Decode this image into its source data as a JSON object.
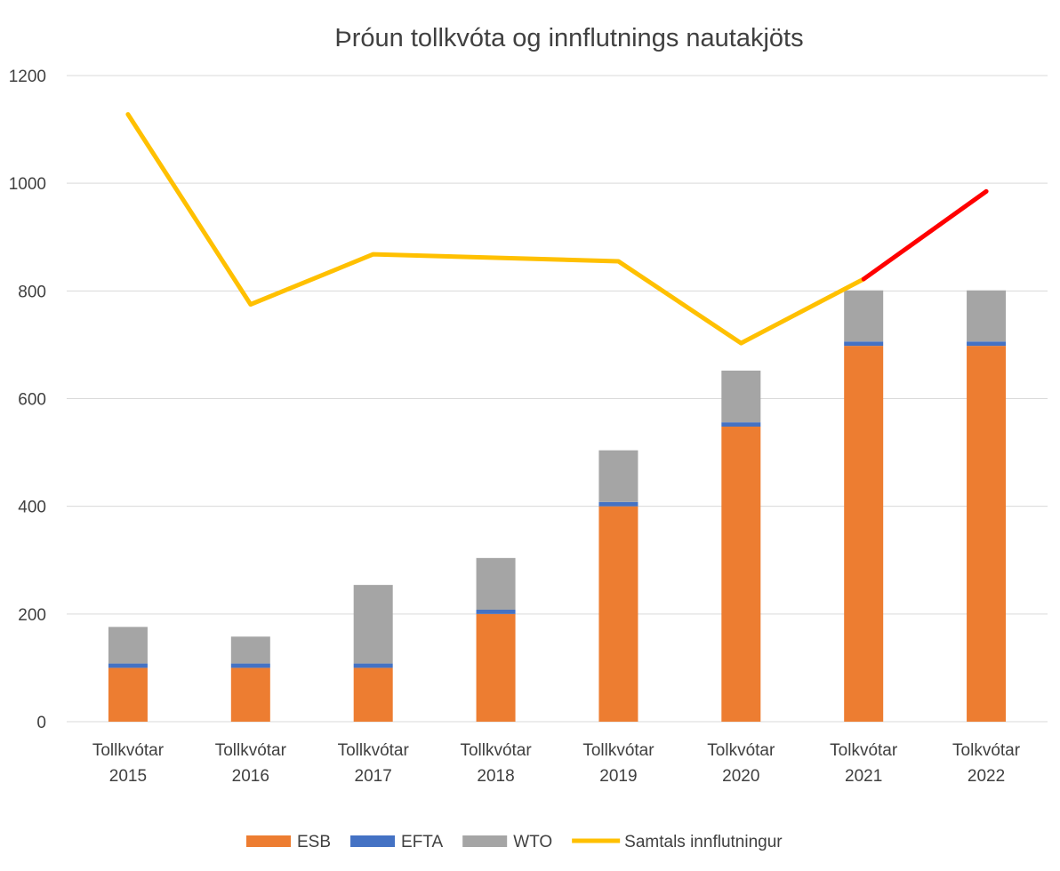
{
  "chart_data": {
    "type": "bar",
    "stacked": true,
    "title": "Þróun tollkvóta og innflutnings nautakjöts",
    "xlabel": "",
    "ylabel": "",
    "ylim": [
      0,
      1200
    ],
    "yticks": [
      0,
      200,
      400,
      600,
      800,
      1000,
      1200
    ],
    "grid": true,
    "legend_position": "bottom",
    "categories": [
      [
        "Tollkvótar",
        "2015"
      ],
      [
        "Tollkvótar",
        "2016"
      ],
      [
        "Tollkvótar",
        "2017"
      ],
      [
        "Tollkvótar",
        "2018"
      ],
      [
        "Tollkvótar",
        "2019"
      ],
      [
        "Tolkvótar",
        "2020"
      ],
      [
        "Tolkvótar",
        "2021"
      ],
      [
        "Tolkvótar",
        "2022"
      ]
    ],
    "series": [
      {
        "name": "ESB",
        "type": "bar",
        "color": "#ED7D31",
        "values": [
          100,
          100,
          100,
          200,
          400,
          548,
          698,
          698
        ]
      },
      {
        "name": "EFTA",
        "type": "bar",
        "color": "#4472C4",
        "values": [
          8,
          8,
          8,
          8,
          8,
          8,
          8,
          8
        ]
      },
      {
        "name": "WTO",
        "type": "bar",
        "color": "#A5A5A5",
        "values": [
          68,
          50,
          146,
          96,
          96,
          96,
          95,
          95
        ]
      },
      {
        "name": "Samtals innflutningur",
        "type": "line",
        "color": "#FFC000",
        "highlight_color": "#FF0000",
        "highlight_from_index": 6,
        "values": [
          1128,
          775,
          868,
          null,
          855,
          703,
          822,
          985
        ]
      }
    ]
  }
}
